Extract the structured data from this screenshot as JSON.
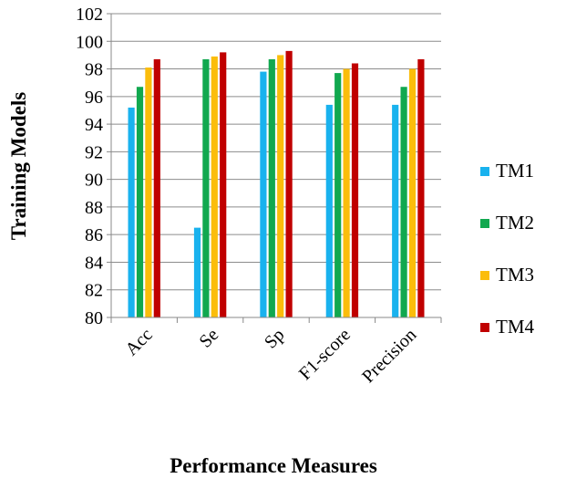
{
  "chart_data": {
    "type": "bar",
    "categories": [
      "Acc",
      "Se",
      "Sp",
      "F1-score",
      "Precision"
    ],
    "series": [
      {
        "name": "TM1",
        "color": "#19b2ee",
        "values": [
          95.2,
          86.5,
          97.8,
          95.4,
          95.4
        ]
      },
      {
        "name": "TM2",
        "color": "#11a84f",
        "values": [
          96.7,
          98.7,
          98.7,
          97.7,
          96.7
        ]
      },
      {
        "name": "TM3",
        "color": "#fbbd0b",
        "values": [
          98.1,
          98.9,
          99.0,
          98.0,
          98.0
        ]
      },
      {
        "name": "TM4",
        "color": "#c00000",
        "values": [
          98.7,
          99.2,
          99.3,
          98.4,
          98.7
        ]
      }
    ],
    "xlabel": "Performance Measures",
    "ylabel": "Training Models",
    "ylim": [
      80,
      102
    ],
    "yticks": [
      "80",
      "82",
      "84",
      "86",
      "88",
      "90",
      "92",
      "94",
      "96",
      "98",
      "100",
      "102"
    ],
    "grid": true,
    "legend_position": "right"
  }
}
